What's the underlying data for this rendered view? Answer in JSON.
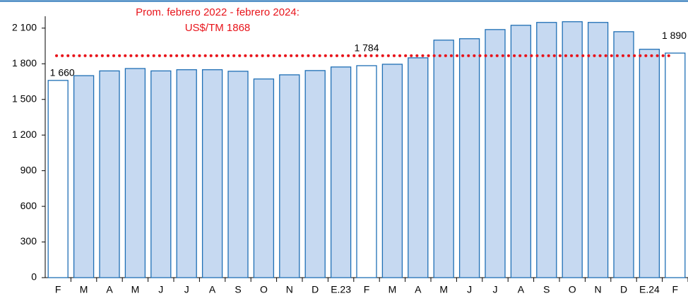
{
  "chart_data": {
    "type": "bar",
    "annotation": [
      "Prom. febrero 2022 - febrero 2024:",
      "US$/TM 1868"
    ],
    "reference_line": 1868,
    "reference_color": "#e8141b",
    "categories": [
      "F",
      "M",
      "A",
      "M",
      "J",
      "J",
      "A",
      "S",
      "O",
      "N",
      "D",
      "E.23",
      "F",
      "M",
      "A",
      "M",
      "J",
      "J",
      "A",
      "S",
      "O",
      "N",
      "D",
      "E.24",
      "F"
    ],
    "values": [
      1660,
      1700,
      1740,
      1760,
      1740,
      1750,
      1750,
      1737,
      1672,
      1707,
      1743,
      1773,
      1784,
      1796,
      1850,
      1999,
      2011,
      2088,
      2124,
      2148,
      2154,
      2148,
      2070,
      1922,
      1890
    ],
    "value_labels": [
      "1 660",
      null,
      null,
      null,
      null,
      null,
      null,
      null,
      null,
      null,
      null,
      null,
      "1 784",
      null,
      null,
      null,
      null,
      null,
      null,
      null,
      null,
      null,
      null,
      null,
      "1 890"
    ],
    "color": "#c6d9f1",
    "highlight_color": "#ffffff",
    "highlight": [
      0,
      12,
      24
    ],
    "ylim": [
      0,
      2200
    ],
    "yticks": [
      0,
      300,
      600,
      900,
      {
        "value": 1200,
        "label": "1 200"
      },
      {
        "value": 1500,
        "label": "1 500"
      },
      {
        "value": 1800,
        "label": "1 800"
      },
      {
        "value": 2100,
        "label": "2 100"
      }
    ],
    "grid": false
  }
}
